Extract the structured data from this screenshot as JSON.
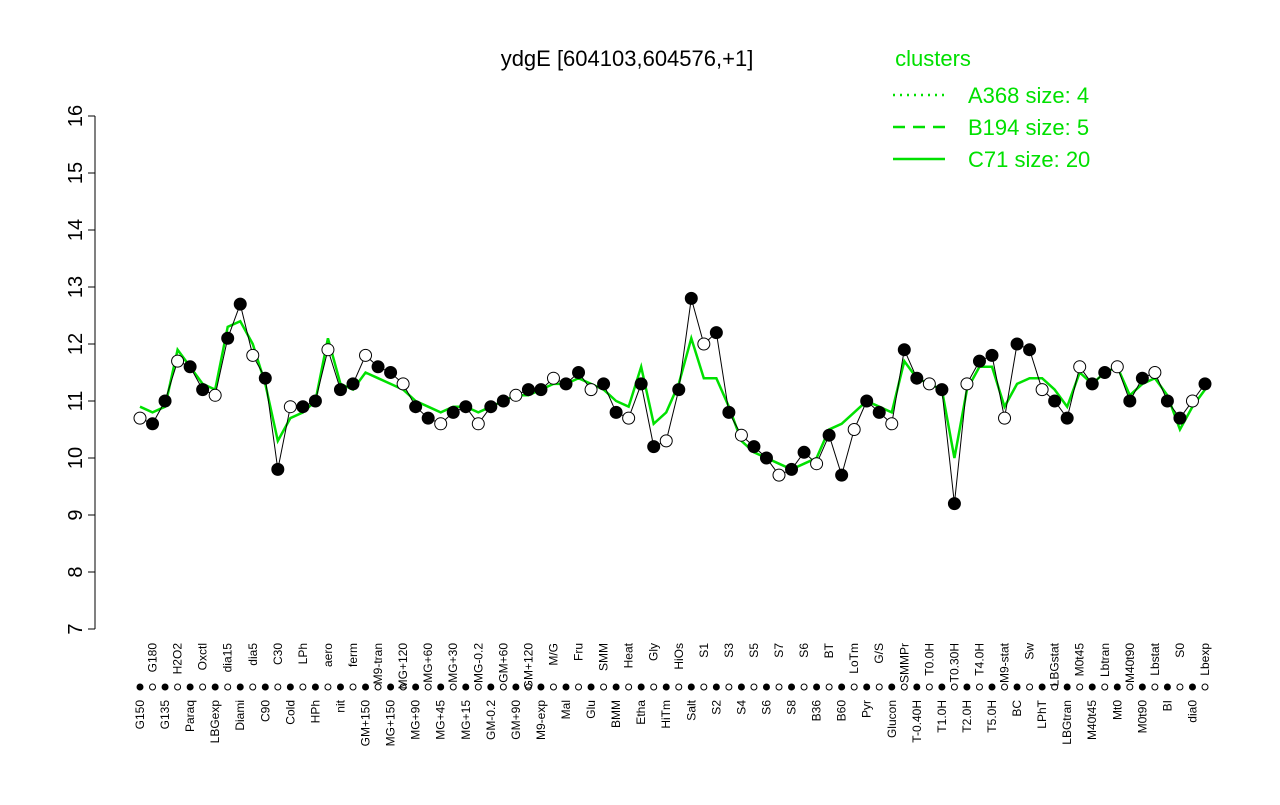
{
  "chart_data": {
    "type": "line",
    "title": "ydgE [604103,604576,+1]",
    "categories": [
      "G150",
      "G180",
      "G135",
      "H2O2",
      "Paraq",
      "Oxctl",
      "LBGexp",
      "dia15",
      "Diami",
      "dia5",
      "C90",
      "C30",
      "Cold",
      "LPh",
      "HPh",
      "aero",
      "nit",
      "ferm",
      "GM+150",
      "M9-tran",
      "MG+150",
      "MG+120",
      "MG+90",
      "MG+60",
      "MG+45",
      "MG+30",
      "MG+15",
      "MG-0.2",
      "GM-0.2",
      "GM+60",
      "GM+90",
      "GM+120",
      "M9-exp",
      "M/G",
      "Mal",
      "Fru",
      "Glu",
      "SMM",
      "BMM",
      "Heat",
      "Etha",
      "Gly",
      "HiTm",
      "HiOs",
      "Salt",
      "S1",
      "S2",
      "S3",
      "S4",
      "S5",
      "S6",
      "S7",
      "S8",
      "S6",
      "B36",
      "BT",
      "B60",
      "LoTm",
      "Pyr",
      "G/S",
      "Glucon",
      "SMMPr",
      "T-0.40H",
      "T0.0H",
      "T1.0H",
      "T0.30H",
      "T2.0H",
      "T4.0H",
      "T5.0H",
      "M9-stat",
      "BC",
      "Sw",
      "LPhT",
      "LBGstat",
      "LBGtran",
      "M0t45",
      "M40t45",
      "Lbtran",
      "Mt0",
      "M40t90",
      "M0t90",
      "Lbstat",
      "BI",
      "S0",
      "dia0",
      "Lbexp"
    ],
    "values": [
      10.7,
      10.6,
      11.0,
      11.7,
      11.6,
      11.2,
      11.1,
      12.1,
      12.7,
      11.8,
      11.4,
      9.8,
      10.9,
      10.9,
      11.0,
      11.9,
      11.2,
      11.3,
      11.8,
      11.6,
      11.5,
      11.3,
      10.9,
      10.7,
      10.6,
      10.8,
      10.9,
      10.6,
      10.9,
      11.0,
      11.1,
      11.2,
      11.2,
      11.4,
      11.3,
      11.5,
      11.2,
      11.3,
      10.8,
      10.7,
      11.3,
      10.2,
      10.3,
      11.2,
      12.8,
      12.0,
      12.2,
      10.8,
      10.4,
      10.2,
      10.0,
      9.7,
      9.8,
      10.1,
      9.9,
      10.4,
      9.7,
      10.5,
      11.0,
      10.8,
      10.6,
      11.9,
      11.4,
      11.3,
      11.2,
      9.2,
      11.3,
      11.7,
      11.8,
      10.7,
      12.0,
      11.9,
      11.2,
      11.0,
      10.7,
      11.6,
      11.3,
      11.5,
      11.6,
      11.0,
      11.4,
      11.5,
      11.0,
      10.7,
      11.0,
      11.3
    ],
    "series": [
      {
        "name": "A368 size: 4",
        "color": "#00e000",
        "values": [
          null,
          null,
          null,
          null,
          null,
          null,
          null,
          null,
          null,
          null,
          null,
          null,
          null,
          null,
          null,
          null,
          null,
          null,
          null,
          null,
          null,
          null,
          null,
          null,
          null,
          null,
          null,
          null,
          null,
          null,
          null,
          null,
          null,
          null,
          null,
          null,
          null,
          null,
          null,
          null,
          null,
          null,
          null,
          null,
          null,
          null,
          null,
          null,
          null,
          null,
          null,
          null,
          null,
          null,
          null,
          null,
          null,
          null,
          null,
          null,
          null,
          null,
          null,
          null,
          null,
          null,
          null,
          null,
          null,
          null,
          null,
          null,
          null,
          null,
          null,
          null,
          null,
          null,
          null,
          null,
          null,
          null,
          null,
          null,
          null,
          null
        ]
      },
      {
        "name": "B194 size: 5",
        "color": "#00e000",
        "values": [
          null,
          null,
          null,
          null,
          null,
          null,
          null,
          null,
          null,
          null,
          null,
          null,
          null,
          null,
          null,
          null,
          null,
          null,
          null,
          null,
          null,
          null,
          null,
          null,
          null,
          null,
          null,
          null,
          null,
          null,
          null,
          null,
          null,
          null,
          null,
          null,
          null,
          null,
          null,
          null,
          null,
          null,
          null,
          null,
          null,
          null,
          null,
          null,
          null,
          null,
          null,
          null,
          null,
          null,
          null,
          null,
          null,
          null,
          null,
          null,
          null,
          null,
          null,
          null,
          null,
          null,
          null,
          null,
          null,
          null,
          null,
          null,
          null,
          null,
          null,
          null,
          null,
          null,
          null,
          null,
          null,
          null,
          null,
          null,
          null,
          null
        ]
      },
      {
        "name": "C71 size: 20",
        "color": "#00e000",
        "values": [
          10.9,
          10.8,
          10.9,
          11.9,
          11.6,
          11.3,
          11.2,
          12.3,
          12.4,
          12.0,
          11.3,
          10.3,
          10.7,
          10.8,
          11.0,
          12.1,
          11.3,
          11.2,
          11.5,
          11.4,
          11.3,
          11.2,
          11.0,
          10.9,
          10.8,
          10.9,
          10.9,
          10.8,
          10.9,
          11.0,
          11.1,
          11.1,
          11.2,
          11.3,
          11.3,
          11.4,
          11.3,
          11.2,
          11.0,
          10.9,
          11.6,
          10.6,
          10.8,
          11.3,
          12.1,
          11.4,
          11.4,
          10.9,
          10.3,
          10.1,
          10.0,
          9.9,
          9.8,
          9.9,
          10.0,
          10.5,
          10.6,
          10.8,
          11.0,
          10.9,
          10.8,
          11.7,
          11.4,
          11.3,
          11.2,
          10.0,
          11.2,
          11.6,
          11.6,
          10.9,
          11.3,
          11.4,
          11.4,
          11.2,
          10.9,
          11.5,
          11.3,
          11.5,
          11.6,
          11.1,
          11.3,
          11.4,
          11.1,
          10.5,
          10.9,
          11.2
        ]
      }
    ],
    "legend_title": "clusters",
    "ylim": [
      7,
      16
    ],
    "yticks": [
      7,
      8,
      9,
      10,
      11,
      12,
      13,
      14,
      15,
      16
    ]
  }
}
